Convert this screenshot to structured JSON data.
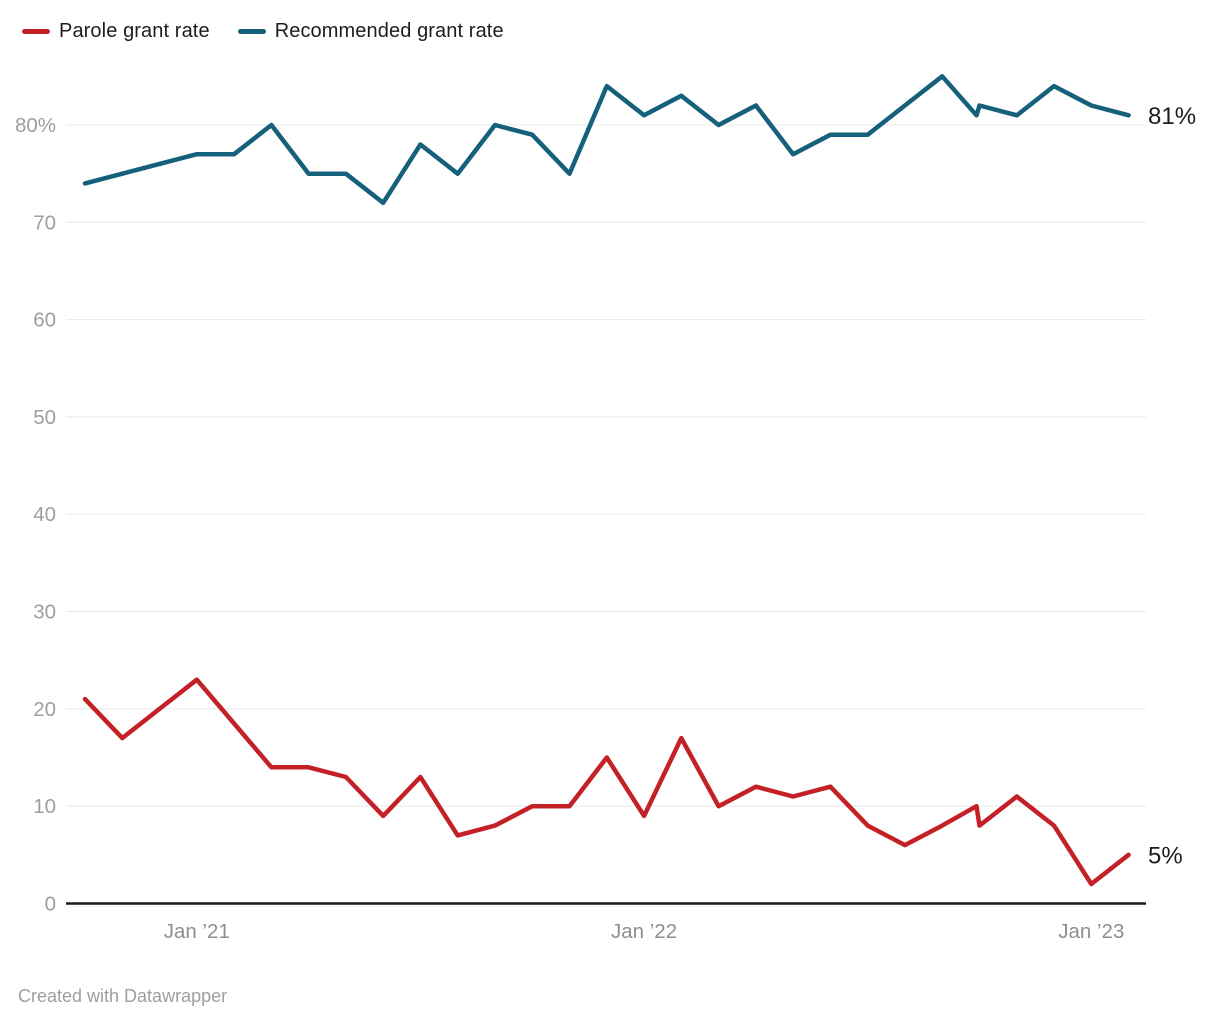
{
  "legend": {
    "items": [
      {
        "label": "Parole grant rate",
        "color": "#c42127"
      },
      {
        "label": "Recommended grant rate",
        "color": "#15607a"
      }
    ]
  },
  "footer": {
    "credit": "Created with Datawrapper"
  },
  "chart_data": {
    "type": "line",
    "title": "",
    "xlabel": "",
    "ylabel": "",
    "x_unit": "month",
    "x_range_note": "Oct 2020 through Feb 2023, monthly (October 2022 has two data points)",
    "dates": [
      "Oct ’20",
      "Nov ’20",
      "Dec ’20",
      "Jan ’21",
      "Feb ’21",
      "Mar ’21",
      "Apr ’21",
      "May ’21",
      "Jun ’21",
      "Jul ’21",
      "Aug ’21",
      "Sep ’21",
      "Oct ’21",
      "Nov ’21",
      "Dec ’21",
      "Jan ’22",
      "Feb ’22",
      "Mar ’22",
      "Apr ’22",
      "May ’22",
      "Jun ’22",
      "Jul ’22",
      "Aug ’22",
      "Sep ’22",
      "Oct ’22",
      "Oct ’22",
      "Nov ’22",
      "Dec ’22",
      "Jan ’23",
      "Feb ’23"
    ],
    "points_t": [
      0,
      1,
      2,
      3,
      4,
      5,
      6,
      7,
      8,
      9,
      10,
      11,
      12,
      13,
      14,
      15,
      16,
      17,
      18,
      19,
      20,
      21,
      22,
      23,
      23.92,
      24,
      25,
      26,
      27,
      28
    ],
    "series": [
      {
        "name": "Parole grant rate",
        "color": "#c42127",
        "end_label": "5%",
        "values": [
          21,
          17,
          20,
          23,
          18.5,
          14,
          14,
          13,
          9,
          13,
          7,
          8,
          10,
          10,
          15,
          9,
          17,
          10,
          12,
          11,
          12,
          8,
          6,
          8,
          10,
          8,
          11,
          8,
          2,
          5
        ]
      },
      {
        "name": "Recommended grant rate",
        "color": "#15607a",
        "end_label": "81%",
        "values": [
          74,
          75,
          76,
          77,
          77,
          80,
          75,
          75,
          72,
          78,
          75,
          80,
          79,
          75,
          84,
          81,
          83,
          80,
          82,
          77,
          79,
          79,
          82,
          85,
          81,
          82,
          81,
          84,
          82,
          81
        ]
      }
    ],
    "ylim": [
      0,
      87.5
    ],
    "yticks": [
      {
        "v": 0,
        "label": "0"
      },
      {
        "v": 10,
        "label": "10"
      },
      {
        "v": 20,
        "label": "20"
      },
      {
        "v": 30,
        "label": "30"
      },
      {
        "v": 40,
        "label": "40"
      },
      {
        "v": 50,
        "label": "50"
      },
      {
        "v": 60,
        "label": "60"
      },
      {
        "v": 70,
        "label": "70"
      },
      {
        "v": 80,
        "label": "80%"
      }
    ],
    "xticks": [
      {
        "t": 3,
        "label": "Jan ’21"
      },
      {
        "t": 15,
        "label": "Jan ’22"
      },
      {
        "t": 27,
        "label": "Jan ’23"
      }
    ],
    "grid": "horizontal",
    "legend_position": "top-left",
    "colors": {
      "gridline": "#e8e8e8",
      "axis": "#1a1a1a",
      "y_tick_text": "#9e9e9e",
      "x_tick_text": "#8e8e8e",
      "end_label_text": "#1d1d1d"
    }
  }
}
